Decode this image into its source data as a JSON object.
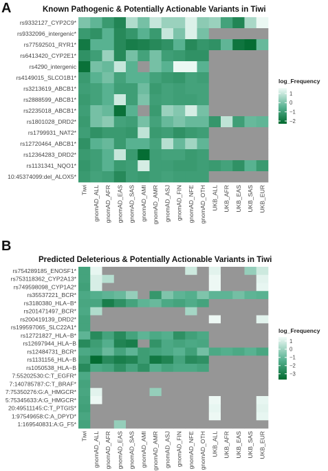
{
  "colors": {
    "missing": "#969696",
    "gradient_low": "#00692e",
    "gradient_mid": "#55b08f",
    "gradient_high": "#f2fbf8"
  },
  "chart_data": [
    {
      "panel_label": "A",
      "type": "heatmap",
      "title": "Known Pathogenic & Potentially Actionable Variants in Tiwi",
      "columns": [
        "Tiwi",
        "gnomAD_ALL",
        "gnomAD_AFR",
        "gnomAD_EAS",
        "gnomAD_SAS",
        "gnomAD_AMI",
        "gnomAD_AMR",
        "gnomAD_ASJ",
        "gnomAD_FIN",
        "gnomAD_NFE",
        "gnomAD_OTH",
        "UKB_ALL",
        "UKB_AFR",
        "UKB_EAS",
        "UKB_SAS",
        "UKB_EUR"
      ],
      "rows": [
        "rs9332127_CYP2C9*",
        "rs9332096_intergenic*",
        "rs77592501_RYR1*",
        "rs6413420_CYP2E1*",
        "rs4290_intergenic",
        "rs4149015_SLCO1B1*",
        "rs3213619_ABCB1*",
        "rs2888599_ABCB1*",
        "rs2235018_ABCB1*",
        "rs1801028_DRD2*",
        "rs1799931_NAT2*",
        "rs12720464_ABCB1*",
        "rs12364283_DRD2*",
        "rs1131341_NQO1*",
        "10:45374099:del_ALOX5*"
      ],
      "values": [
        [
          -0.7,
          -0.3,
          0.4,
          0.9,
          -1.4,
          -0.6,
          -1.7,
          -1.1,
          -1.1,
          -2.0,
          -0.9,
          -1.1,
          0.2,
          0.9,
          -1.3,
          -2.2
        ],
        [
          0.4,
          0.6,
          -0.2,
          0.8,
          0.5,
          -0.2,
          0.4,
          -1.7,
          -0.7,
          -2.0,
          -0.6,
          null,
          null,
          null,
          null,
          null
        ],
        [
          1.2,
          -0.2,
          -0.2,
          0.8,
          1.1,
          1.0,
          0.8,
          0.6,
          -0.2,
          0.8,
          0.5,
          0.6,
          -0.3,
          1.3,
          1.5,
          -0.4
        ],
        [
          0.6,
          0.3,
          -1.1,
          0.8,
          -0.6,
          0.2,
          -0.6,
          0.3,
          0.4,
          0.6,
          0.6,
          null,
          null,
          null,
          null,
          null
        ],
        [
          1.4,
          -0.6,
          -0.4,
          -1.7,
          -0.2,
          null,
          -0.6,
          -0.2,
          -2.2,
          -2.2,
          -0.2,
          null,
          null,
          null,
          null,
          null
        ],
        [
          0.4,
          -0.2,
          -0.6,
          0.2,
          -0.2,
          -0.2,
          0.2,
          0.4,
          0.5,
          0.2,
          0.3,
          null,
          null,
          null,
          null,
          null
        ],
        [
          0.3,
          0.2,
          -0.2,
          0.3,
          0.3,
          -0.5,
          0.4,
          0.2,
          0.3,
          0.2,
          0.2,
          null,
          null,
          null,
          null,
          null
        ],
        [
          0.4,
          0.2,
          -0.2,
          -1.8,
          0.3,
          -0.7,
          0.3,
          0.2,
          0.3,
          0.3,
          0.2,
          null,
          null,
          null,
          null,
          null
        ],
        [
          0.3,
          -0.6,
          -0.4,
          1.4,
          -0.2,
          null,
          0.4,
          -1.1,
          -0.8,
          -1.9,
          -0.6,
          null,
          null,
          null,
          null,
          null
        ],
        [
          0.4,
          -0.6,
          -0.9,
          0.2,
          0.3,
          -0.6,
          0.2,
          -0.4,
          -0.7,
          -0.4,
          -0.4,
          0.5,
          -1.6,
          0.3,
          -0.4,
          -0.3
        ],
        [
          0.3,
          0.6,
          0.4,
          0.4,
          0.5,
          -1.6,
          0.4,
          0.3,
          0.6,
          0.4,
          0.3,
          null,
          null,
          null,
          null,
          null
        ],
        [
          0.6,
          -0.2,
          -0.4,
          0.4,
          -0.2,
          -0.2,
          0.2,
          -1.5,
          -0.4,
          -1.2,
          -0.3,
          null,
          null,
          null,
          null,
          null
        ],
        [
          0.4,
          0.3,
          -0.2,
          -1.7,
          0.4,
          1.5,
          0.3,
          0.2,
          0.2,
          0.4,
          0.3,
          null,
          null,
          null,
          null,
          null
        ],
        [
          0.5,
          0.3,
          -0.2,
          0.4,
          0.3,
          -1.9,
          0.3,
          0.3,
          0.4,
          0.4,
          0.3,
          0.4,
          0.2,
          0.6,
          -0.2,
          0.4
        ],
        [
          0.4,
          0.2,
          0.3,
          0.8,
          0.3,
          0.4,
          0.3,
          0.2,
          0.3,
          0.3,
          0.3,
          null,
          null,
          null,
          null,
          null
        ]
      ],
      "legend": {
        "title": "log_Frequency",
        "ticks": [
          "−2",
          "−1",
          "0",
          "1"
        ],
        "tick_values": [
          -2,
          -1,
          0,
          1
        ],
        "range": [
          -2.3,
          1.6
        ]
      }
    },
    {
      "panel_label": "B",
      "type": "heatmap",
      "title": "Predicted Deleterious & Potentially Actionable Variants in Tiwi",
      "columns": [
        "Tiwi",
        "gnomAD_ALL",
        "gnomAD_AFR",
        "gnomAD_EAS",
        "gnomAD_SAS",
        "gnomAD_AMI",
        "gnomAD_AMR",
        "gnomAD_ASJ",
        "gnomAD_FIN",
        "gnomAD_NFE",
        "gnomAD_OTH",
        "UKB_ALL",
        "UKB_AFR",
        "UKB_EAS",
        "UKB_SAS",
        "UKB_EUR"
      ],
      "rows": [
        "rs754289185_ENOSF1*",
        "rs753118362_CYP2A13*",
        "rs749598098_CYP1A2*",
        "rs35537221_BCR*",
        "rs3180380_HLA−B*",
        "rs201471497_BCR*",
        "rs200419139_DRD2*",
        "rs199597065_SLC22A1*",
        "rs12721827_HLA−B*",
        "rs12697944_HLA−B",
        "rs12484731_BCR*",
        "rs1131156_HLA−B",
        "rs1050538_HLA−B",
        "7:55202530:C:T_EGFR*",
        "7:140785787:C:T_BRAF*",
        "7:75350276:G:A_HMGCR*",
        "5:75345633:A:G_HMGCR*",
        "20:49511145:C:T_PTGIS*",
        "1:97549658:C:A_DPYD*",
        "1:169540831:A:G_F5*"
      ],
      "values": [
        [
          -0.4,
          -3.5,
          null,
          null,
          null,
          null,
          null,
          null,
          null,
          -3.0,
          null,
          -3.4,
          null,
          null,
          -2.0,
          -3.0
        ],
        [
          -0.4,
          -3.2,
          -2.6,
          null,
          null,
          null,
          null,
          null,
          null,
          null,
          null,
          -3.6,
          null,
          null,
          null,
          -3.4
        ],
        [
          -0.3,
          -3.2,
          null,
          null,
          null,
          null,
          null,
          null,
          null,
          null,
          null,
          -3.6,
          null,
          null,
          null,
          -3.5
        ],
        [
          -0.6,
          -0.8,
          -1.0,
          -1.2,
          -2.0,
          null,
          0.0,
          -1.6,
          -1.0,
          -0.8,
          -1.6,
          -1.0,
          -1.0,
          -1.4,
          -1.0,
          -0.9
        ],
        [
          -0.5,
          -0.5,
          0.8,
          0.2,
          -0.4,
          -1.0,
          -1.2,
          -0.6,
          -0.4,
          -0.7,
          -0.4,
          null,
          null,
          null,
          null,
          null
        ],
        [
          -0.6,
          -2.5,
          null,
          null,
          null,
          null,
          null,
          null,
          null,
          -2.3,
          null,
          null,
          null,
          null,
          null,
          null
        ],
        [
          -0.4,
          null,
          null,
          null,
          null,
          null,
          null,
          null,
          null,
          null,
          null,
          -3.6,
          null,
          null,
          null,
          -3.4
        ],
        [
          -0.4,
          null,
          null,
          null,
          null,
          null,
          null,
          null,
          null,
          null,
          null,
          null,
          null,
          null,
          null,
          null
        ],
        [
          -1.0,
          0.4,
          -0.4,
          0.4,
          -0.4,
          -1.0,
          -0.6,
          -0.8,
          0.2,
          -0.3,
          -0.6,
          null,
          null,
          null,
          null,
          null
        ],
        [
          0.4,
          -0.2,
          -0.8,
          0.6,
          0.8,
          null,
          0.1,
          -0.6,
          -0.4,
          -0.6,
          -0.5,
          null,
          null,
          null,
          null,
          null
        ],
        [
          -0.6,
          -0.4,
          -1.2,
          -0.4,
          -1.0,
          -0.2,
          -0.4,
          -0.6,
          -0.9,
          -0.3,
          -1.4,
          -0.6,
          -0.8,
          -0.6,
          -0.9,
          -0.5
        ],
        [
          -0.2,
          1.4,
          0.4,
          0.8,
          0.6,
          -0.2,
          1.0,
          0.6,
          -0.4,
          0.4,
          0.2,
          null,
          null,
          null,
          null,
          null
        ],
        [
          0.4,
          -0.6,
          -0.4,
          0.2,
          -0.4,
          0.2,
          -0.8,
          -0.4,
          -0.6,
          -0.6,
          -0.4,
          null,
          null,
          null,
          null,
          null
        ],
        [
          -0.6,
          null,
          null,
          null,
          null,
          null,
          null,
          null,
          null,
          null,
          null,
          null,
          null,
          null,
          null,
          null
        ],
        [
          -0.4,
          null,
          null,
          null,
          null,
          null,
          null,
          null,
          null,
          null,
          null,
          null,
          null,
          null,
          null,
          null
        ],
        [
          -0.5,
          -3.4,
          null,
          null,
          null,
          null,
          -2.0,
          null,
          null,
          null,
          null,
          null,
          null,
          null,
          null,
          null
        ],
        [
          -0.4,
          -3.6,
          null,
          null,
          null,
          null,
          null,
          null,
          null,
          null,
          null,
          -3.6,
          null,
          null,
          null,
          -3.5
        ],
        [
          -0.3,
          null,
          null,
          null,
          null,
          null,
          null,
          null,
          null,
          null,
          null,
          -3.5,
          null,
          null,
          null,
          -3.4
        ],
        [
          -0.5,
          null,
          null,
          null,
          null,
          null,
          null,
          null,
          null,
          null,
          null,
          -3.6,
          null,
          null,
          null,
          -3.5
        ],
        [
          -0.4,
          null,
          null,
          -2.0,
          null,
          null,
          null,
          null,
          null,
          null,
          null,
          null,
          null,
          null,
          null,
          null
        ]
      ],
      "legend": {
        "title": "log_Frequency",
        "ticks": [
          "−3",
          "−2",
          "−1",
          "0",
          "1"
        ],
        "tick_values": [
          -3,
          -2,
          -1,
          0,
          1
        ],
        "range": [
          -3.7,
          1.5
        ]
      }
    }
  ]
}
